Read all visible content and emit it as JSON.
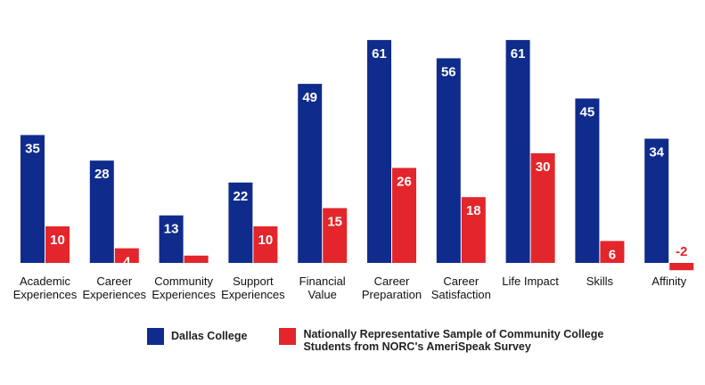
{
  "chart_data": {
    "type": "bar",
    "title": "",
    "xlabel": "",
    "ylabel": "",
    "grid": false,
    "legend_position": "bottom",
    "ylim": [
      -3,
      65
    ],
    "categories": [
      [
        "Academic",
        "Experiences"
      ],
      [
        "Career",
        "Experiences"
      ],
      [
        "Community",
        "Experiences"
      ],
      [
        "Support",
        "Experiences"
      ],
      [
        "Financial",
        "Value"
      ],
      [
        "Career",
        "Preparation"
      ],
      [
        "Career",
        "Satisfaction"
      ],
      [
        "Life Impact"
      ],
      [
        "Skills"
      ],
      [
        "Affinity"
      ]
    ],
    "series": [
      {
        "name": "Dallas College",
        "color": "#0f2c8c",
        "label_color": "#ffffff",
        "values": [
          35,
          28,
          13,
          22,
          49,
          61,
          56,
          61,
          45,
          34
        ]
      },
      {
        "name": "Nationally Representative Sample of Community College Students from NORC's AmeriSpeak Survey",
        "color": "#e3262b",
        "label_color": "#ffffff",
        "values": [
          10,
          4,
          2,
          10,
          15,
          26,
          18,
          30,
          6,
          -2
        ]
      }
    ]
  },
  "legend": {
    "items": [
      {
        "label": "Dallas College",
        "color": "#0f2c8c"
      },
      {
        "label_line1": "Nationally Representative Sample of Community College",
        "label_line2": "Students from NORC's AmeriSpeak Survey",
        "color": "#e3262b"
      }
    ]
  }
}
